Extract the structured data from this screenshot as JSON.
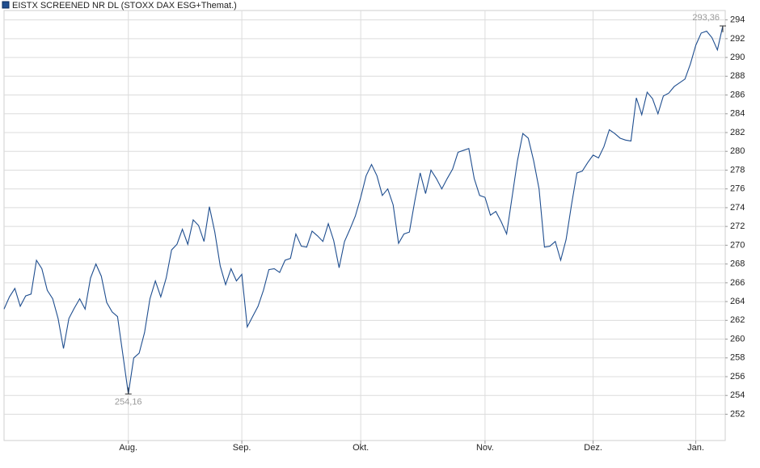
{
  "chart_data": {
    "type": "line",
    "title": "EISTX SCREENED NR DL (STOXX DAX ESG+Themat.)",
    "series": [
      {
        "name": "EISTX SCREENED NR DL (STOXX DAX ESG+Themat.)",
        "color": "#1f4e8f",
        "values": [
          263.2,
          264.5,
          265.4,
          263.5,
          264.6,
          264.8,
          268.4,
          267.5,
          265.2,
          264.3,
          262.2,
          259.0,
          262.2,
          263.3,
          264.3,
          263.2,
          266.5,
          268.0,
          266.7,
          263.9,
          262.9,
          262.4,
          258.3,
          254.16,
          258.0,
          258.5,
          260.7,
          264.3,
          266.2,
          264.5,
          266.5,
          269.5,
          270.1,
          271.7,
          270.1,
          272.7,
          272.1,
          270.4,
          274.1,
          271.4,
          267.8,
          265.8,
          267.5,
          266.2,
          266.9,
          261.3,
          262.4,
          263.5,
          265.2,
          267.4,
          267.5,
          267.1,
          268.4,
          268.6,
          271.2,
          269.9,
          269.8,
          271.5,
          271.0,
          270.4,
          272.3,
          270.5,
          267.6,
          270.4,
          271.7,
          273.1,
          275.1,
          277.4,
          278.6,
          277.4,
          275.3,
          276.0,
          274.3,
          270.2,
          271.2,
          271.4,
          274.7,
          277.7,
          275.5,
          278.0,
          277.1,
          276.0,
          277.1,
          278.1,
          279.9,
          280.1,
          280.3,
          277.1,
          275.3,
          275.1,
          273.2,
          273.6,
          272.5,
          271.2,
          275.1,
          279.0,
          281.9,
          281.4,
          279.0,
          276.0,
          269.8,
          269.9,
          270.4,
          268.4,
          270.6,
          274.3,
          277.7,
          277.9,
          278.8,
          279.6,
          279.3,
          280.5,
          282.3,
          281.9,
          281.4,
          281.2,
          281.1,
          285.7,
          283.9,
          286.3,
          285.6,
          284.0,
          285.9,
          286.2,
          286.9,
          287.3,
          287.7,
          289.3,
          291.3,
          292.6,
          292.8,
          292.1,
          290.8,
          293.36
        ],
        "value_labels": [
          null,
          null,
          null,
          null,
          null,
          null,
          null,
          null,
          null,
          null,
          null,
          null,
          null,
          null,
          null,
          null,
          null,
          null,
          null,
          null,
          null,
          null,
          null,
          "254,16",
          null,
          null,
          null,
          null,
          null,
          null,
          null,
          null,
          null,
          null,
          null,
          null,
          null,
          null,
          null,
          null,
          null,
          null,
          null,
          null,
          null,
          null,
          null,
          null,
          null,
          null,
          null,
          null,
          null,
          null,
          null,
          null,
          null,
          null,
          null,
          null,
          null,
          null,
          null,
          null,
          null,
          null,
          null,
          null,
          null,
          null,
          null,
          null,
          null,
          null,
          null,
          null,
          null,
          null,
          null,
          null,
          null,
          null,
          null,
          null,
          null,
          null,
          null,
          null,
          null,
          null,
          null,
          null,
          null,
          null,
          null,
          null,
          null,
          null,
          null,
          null,
          null,
          null,
          null,
          null,
          null,
          null,
          null,
          null,
          null,
          null,
          null,
          null,
          null,
          null,
          null,
          null,
          null,
          null,
          null,
          null,
          null,
          null,
          null,
          null,
          null,
          null,
          null,
          null,
          null,
          null,
          null,
          null,
          null,
          "293,36"
        ]
      }
    ],
    "xlim": [
      0,
      133
    ],
    "xticks": [
      {
        "value": 23,
        "label": "Aug."
      },
      {
        "value": 44,
        "label": "Sep."
      },
      {
        "value": 66,
        "label": "Okt."
      },
      {
        "value": 89,
        "label": "Nov."
      },
      {
        "value": 109,
        "label": "Dez."
      },
      {
        "value": 128,
        "label": "Jan."
      }
    ],
    "ylim": [
      249.2,
      295.0
    ],
    "yticks": [
      252,
      254,
      256,
      258,
      260,
      262,
      264,
      266,
      268,
      270,
      272,
      274,
      276,
      278,
      280,
      282,
      284,
      286,
      288,
      290,
      292,
      294
    ],
    "grid": true
  }
}
